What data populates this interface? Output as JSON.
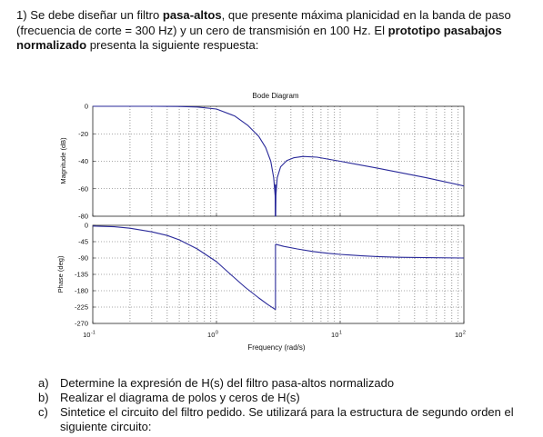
{
  "problem": {
    "number": "1)",
    "t1": " Se debe diseñar un filtro ",
    "b1": "pasa-altos",
    "t2": ", que presente máxima planicidad en la banda de paso (frecuencia de corte = 300 Hz) y un cero de transmisión en 100 Hz. El ",
    "b2": "prototipo pasabajos normalizado",
    "t3": " presenta la siguiente respuesta:"
  },
  "chart_data": {
    "type": "line",
    "title": "Bode Diagram",
    "xlabel": "Frequency (rad/s)",
    "xscale": "log",
    "xlim": [
      0.1,
      100
    ],
    "x_tick_labels": [
      {
        "base": "10",
        "exp": "-1"
      },
      {
        "base": "10",
        "exp": "0"
      },
      {
        "base": "10",
        "exp": "1"
      },
      {
        "base": "10",
        "exp": "2"
      }
    ],
    "grid": true,
    "panels": [
      {
        "name": "magnitude",
        "ylabel": "Magnitude (dB)",
        "ylim": [
          -80,
          0
        ],
        "yticks": [
          0,
          -20,
          -40,
          -60,
          -80
        ],
        "series": [
          {
            "color": "#2a2a9a",
            "x": [
              0.1,
              0.3,
              0.5,
              0.7,
              1.0,
              1.4,
              1.8,
              2.2,
              2.5,
              2.75,
              2.9,
              2.98,
              3.0,
              3.02,
              3.1,
              3.3,
              3.7,
              4.2,
              5.0,
              6.5,
              10,
              20,
              50,
              100
            ],
            "y": [
              0,
              0,
              -0.1,
              -0.5,
              -2,
              -7,
              -14,
              -22,
              -30,
              -40,
              -52,
              -65,
              -80,
              -65,
              -52,
              -44,
              -39.5,
              -37.5,
              -36.5,
              -37,
              -40,
              -45,
              -52,
              -58
            ]
          }
        ]
      },
      {
        "name": "phase",
        "ylabel": "Phase (deg)",
        "ylim": [
          -270,
          0
        ],
        "yticks": [
          0,
          -45,
          -90,
          -135,
          -180,
          -225,
          -270
        ],
        "series": [
          {
            "color": "#2a2a9a",
            "segments": [
              {
                "x": [
                  0.1,
                  0.15,
                  0.2,
                  0.3,
                  0.4,
                  0.5,
                  0.7,
                  1.0,
                  1.3,
                  1.7,
                  2.2,
                  2.6,
                  3.0
                ],
                "y": [
                  -2,
                  -4,
                  -8,
                  -18,
                  -28,
                  -40,
                  -65,
                  -100,
                  -135,
                  -170,
                  -200,
                  -218,
                  -232
                ]
              },
              {
                "x": [
                  3.0,
                  3.5,
                  4.5,
                  6,
                  8,
                  10,
                  15,
                  20,
                  30,
                  50,
                  100
                ],
                "y": [
                  -52,
                  -58,
                  -65,
                  -72,
                  -77,
                  -80,
                  -84,
                  -86,
                  -88,
                  -89,
                  -90
                ]
              }
            ]
          }
        ]
      }
    ]
  },
  "questions": [
    {
      "letter": "a)",
      "text": "Determine la expresión de H(s) del filtro pasa-altos normalizado"
    },
    {
      "letter": "b)",
      "text": "Realizar el diagrama de polos y ceros de H(s)"
    },
    {
      "letter": "c)",
      "text": "Sintetice el circuito del filtro pedido. Se utilizará para la estructura de segundo orden el siguiente circuito:"
    }
  ]
}
